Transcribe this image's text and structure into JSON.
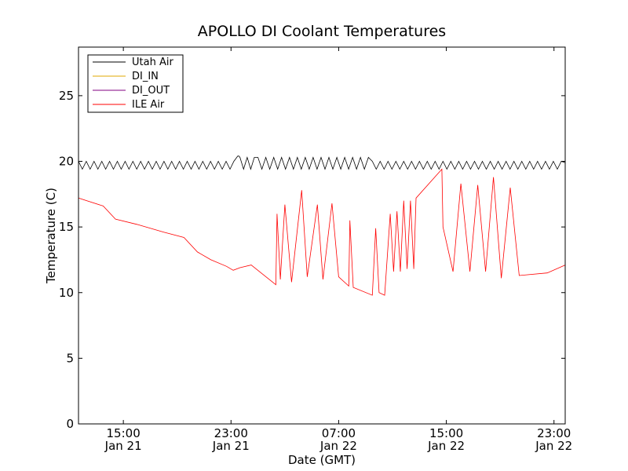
{
  "chart_data": {
    "type": "line",
    "title": "APOLLO DI Coolant Temperatures",
    "xlabel": "Date (GMT)",
    "ylabel": "Temperature (C)",
    "x_unit": "GMT datetime",
    "xlim": [
      "2014-01-21T11:40",
      "2014-01-22T23:50"
    ],
    "ylim": [
      0,
      28.7
    ],
    "y_ticks": [
      0,
      5,
      10,
      15,
      20,
      25
    ],
    "x_ticks": [
      {
        "time": "2014-01-21T15:00",
        "line1": "15:00",
        "line2": "Jan 21"
      },
      {
        "time": "2014-01-21T23:00",
        "line1": "23:00",
        "line2": "Jan 21"
      },
      {
        "time": "2014-01-22T07:00",
        "line1": "07:00",
        "line2": "Jan 22"
      },
      {
        "time": "2014-01-22T15:00",
        "line1": "15:00",
        "line2": "Jan 22"
      },
      {
        "time": "2014-01-22T23:00",
        "line1": "23:00",
        "line2": "Jan 22"
      }
    ],
    "grid": false,
    "legend_position": "top-left",
    "series": [
      {
        "name": "Utah Air",
        "color": "#000000",
        "pattern": "sawtooth oscillation between about 19.4 and 20.0 C",
        "points": [
          [
            "2014-01-21T11:40",
            20.0
          ],
          [
            "2014-01-21T23:30",
            19.6
          ],
          [
            "2014-01-21T23:35",
            20.4
          ],
          [
            "2014-01-21T23:40",
            19.5
          ],
          [
            "2014-01-22T01:00",
            20.3
          ],
          [
            "2014-01-22T09:30",
            19.4
          ],
          [
            "2014-01-22T14:45",
            20.0
          ],
          [
            "2014-01-22T23:50",
            19.9
          ]
        ]
      },
      {
        "name": "DI_IN",
        "color": "#e0a800",
        "points": []
      },
      {
        "name": "DI_OUT",
        "color": "#800080",
        "points": []
      },
      {
        "name": "ILE Air",
        "color": "#ff0000",
        "points": [
          [
            "2014-01-21T11:40",
            17.2
          ],
          [
            "2014-01-21T13:30",
            16.6
          ],
          [
            "2014-01-21T14:25",
            15.6
          ],
          [
            "2014-01-21T16:00",
            15.2
          ],
          [
            "2014-01-21T18:00",
            14.6
          ],
          [
            "2014-01-21T19:30",
            14.2
          ],
          [
            "2014-01-21T20:30",
            13.1
          ],
          [
            "2014-01-21T21:30",
            12.5
          ],
          [
            "2014-01-21T22:40",
            12.0
          ],
          [
            "2014-01-21T23:10",
            11.7
          ],
          [
            "2014-01-21T23:40",
            11.9
          ],
          [
            "2014-01-22T00:30",
            12.1
          ],
          [
            "2014-01-22T02:20",
            10.6
          ],
          [
            "2014-01-22T02:25",
            16.0
          ],
          [
            "2014-01-22T02:40",
            11.0
          ],
          [
            "2014-01-22T03:00",
            16.7
          ],
          [
            "2014-01-22T03:30",
            10.8
          ],
          [
            "2014-01-22T04:15",
            17.8
          ],
          [
            "2014-01-22T04:40",
            11.2
          ],
          [
            "2014-01-22T05:25",
            16.7
          ],
          [
            "2014-01-22T05:50",
            11.0
          ],
          [
            "2014-01-22T06:30",
            16.8
          ],
          [
            "2014-01-22T07:00",
            11.2
          ],
          [
            "2014-01-22T07:45",
            10.5
          ],
          [
            "2014-01-22T07:50",
            15.5
          ],
          [
            "2014-01-22T08:05",
            10.4
          ],
          [
            "2014-01-22T09:30",
            9.8
          ],
          [
            "2014-01-22T09:45",
            14.9
          ],
          [
            "2014-01-22T10:00",
            10.0
          ],
          [
            "2014-01-22T10:25",
            9.8
          ],
          [
            "2014-01-22T10:50",
            16.0
          ],
          [
            "2014-01-22T11:05",
            11.6
          ],
          [
            "2014-01-22T11:20",
            16.2
          ],
          [
            "2014-01-22T11:35",
            11.6
          ],
          [
            "2014-01-22T11:50",
            17.0
          ],
          [
            "2014-01-22T12:05",
            11.8
          ],
          [
            "2014-01-22T12:20",
            17.0
          ],
          [
            "2014-01-22T12:35",
            11.8
          ],
          [
            "2014-01-22T12:45",
            17.2
          ],
          [
            "2014-01-22T14:40",
            19.4
          ],
          [
            "2014-01-22T14:45",
            15.0
          ],
          [
            "2014-01-22T15:30",
            11.6
          ],
          [
            "2014-01-22T16:05",
            18.3
          ],
          [
            "2014-01-22T16:45",
            11.6
          ],
          [
            "2014-01-22T17:20",
            18.2
          ],
          [
            "2014-01-22T17:55",
            11.6
          ],
          [
            "2014-01-22T18:30",
            18.8
          ],
          [
            "2014-01-22T19:05",
            11.1
          ],
          [
            "2014-01-22T19:45",
            18.0
          ],
          [
            "2014-01-22T20:25",
            11.3
          ],
          [
            "2014-01-22T22:30",
            11.5
          ],
          [
            "2014-01-22T23:50",
            12.1
          ]
        ]
      }
    ]
  }
}
